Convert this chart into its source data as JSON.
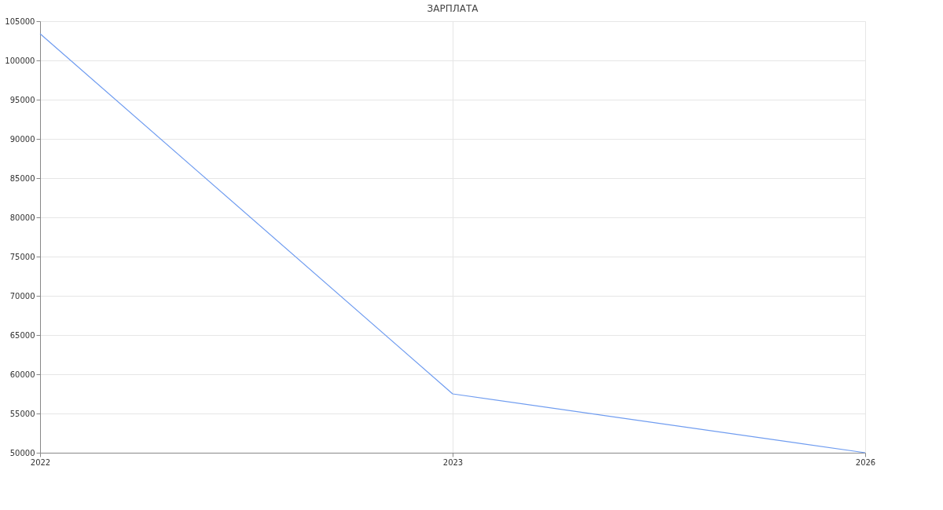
{
  "chart_data": {
    "type": "line",
    "title": "ЗАРПЛАТА",
    "categories": [
      "2022",
      "2023",
      "2026"
    ],
    "series": [
      {
        "color": "#6f9cf0",
        "values": [
          103400,
          57500,
          50000
        ]
      }
    ],
    "ylim": [
      50000,
      105000
    ],
    "yticks": [
      50000,
      55000,
      60000,
      65000,
      70000,
      75000,
      80000,
      85000,
      90000,
      95000,
      100000,
      105000
    ],
    "grid": true,
    "marker": "none",
    "line_style": "solid"
  }
}
